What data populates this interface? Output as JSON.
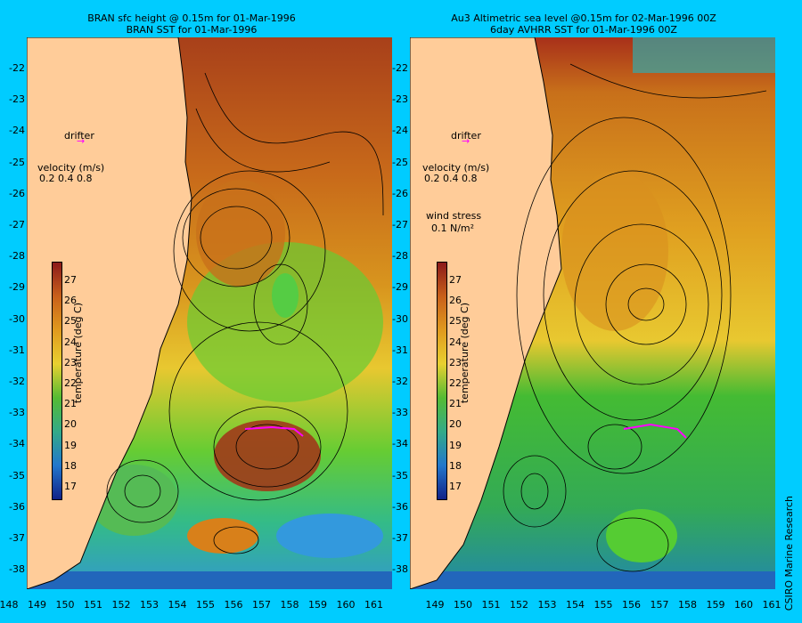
{
  "left_panel": {
    "title_line1": "BRAN sfc height @ 0.15m for 01-Mar-1996",
    "title_line2": "BRAN SST for 01-Mar-1996",
    "drifter_label": "drifter",
    "velocity_label": "velocity (m/s)",
    "velocity_scale": "0.2 0.4 0.8",
    "colorbar_label": "temperature (deg C)"
  },
  "right_panel": {
    "title_line1": "Au3 Altimetric sea level  @0.15m  for 02-Mar-1996 00Z",
    "title_line2": "6day AVHRR SST for 01-Mar-1996 00Z",
    "drifter_label": "drifter",
    "velocity_label": "velocity (m/s)",
    "velocity_scale": "0.2 0.4 0.8",
    "wind_label": "wind stress",
    "wind_value": "0.1  N/m²",
    "colorbar_label": "temperature (deg C)"
  },
  "colorbar_ticks": [
    "27",
    "26",
    "25",
    "24",
    "23",
    "22",
    "21",
    "20",
    "19",
    "18",
    "17"
  ],
  "y_ticks": [
    "-22",
    "-23",
    "-24",
    "-25",
    "-26",
    "-27",
    "-28",
    "-29",
    "-30",
    "-31",
    "-32",
    "-33",
    "-34",
    "-35",
    "-36",
    "-37",
    "-38"
  ],
  "left_x_ticks": [
    "148",
    "149",
    "150",
    "151",
    "152",
    "153",
    "154",
    "155",
    "156",
    "157",
    "158",
    "159",
    "160",
    "161"
  ],
  "right_x_ticks": [
    "149",
    "150",
    "151",
    "152",
    "153",
    "154",
    "155",
    "156",
    "157",
    "158",
    "159",
    "160",
    "161"
  ],
  "credit": "CSIRO Marine Research",
  "colors": {
    "background": "#00ccff",
    "land": "#ffcc99",
    "drifter": "#ff00ff"
  }
}
